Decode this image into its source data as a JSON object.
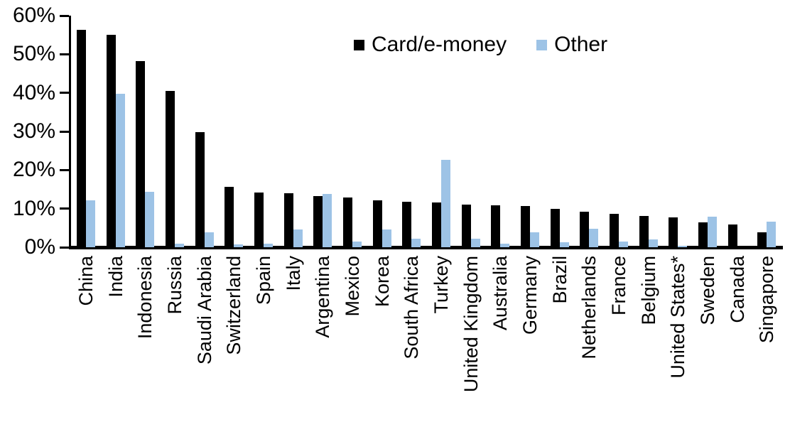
{
  "chart_data": {
    "type": "bar",
    "title": "",
    "xlabel": "",
    "ylabel": "",
    "ylim": [
      0,
      60
    ],
    "yticks_top_down": [
      "60%",
      "50%",
      "40%",
      "30%",
      "20%",
      "10%",
      "0%"
    ],
    "grid": false,
    "legend_position": "top-center-inside",
    "categories": [
      "China",
      "India",
      "Indonesia",
      "Russia",
      "Saudi Arabia",
      "Switzerland",
      "Spain",
      "Italy",
      "Argentina",
      "Mexico",
      "Korea",
      "South Africa",
      "Turkey",
      "United Kingdom",
      "Australia",
      "Germany",
      "Brazil",
      "Netherlands",
      "France",
      "Belgium",
      "United States*",
      "Sweden",
      "Canada",
      "Singapore"
    ],
    "series": [
      {
        "name": "Card/e-money",
        "color": "#000000",
        "values": [
          56.3,
          55.1,
          48.2,
          40.5,
          29.9,
          15.6,
          14.2,
          14.0,
          13.3,
          12.8,
          12.2,
          11.8,
          11.6,
          11.0,
          10.9,
          10.6,
          9.9,
          9.2,
          8.6,
          8.1,
          7.7,
          6.5,
          5.9,
          3.8
        ]
      },
      {
        "name": "Other",
        "color": "#9DC3E6",
        "values": [
          12.2,
          39.8,
          14.4,
          1.0,
          3.9,
          0.8,
          1.0,
          4.6,
          13.8,
          1.4,
          4.6,
          2.3,
          22.6,
          2.3,
          0.9,
          3.9,
          1.2,
          4.8,
          1.5,
          2.1,
          0.4,
          8.0,
          0,
          6.7
        ]
      }
    ]
  }
}
